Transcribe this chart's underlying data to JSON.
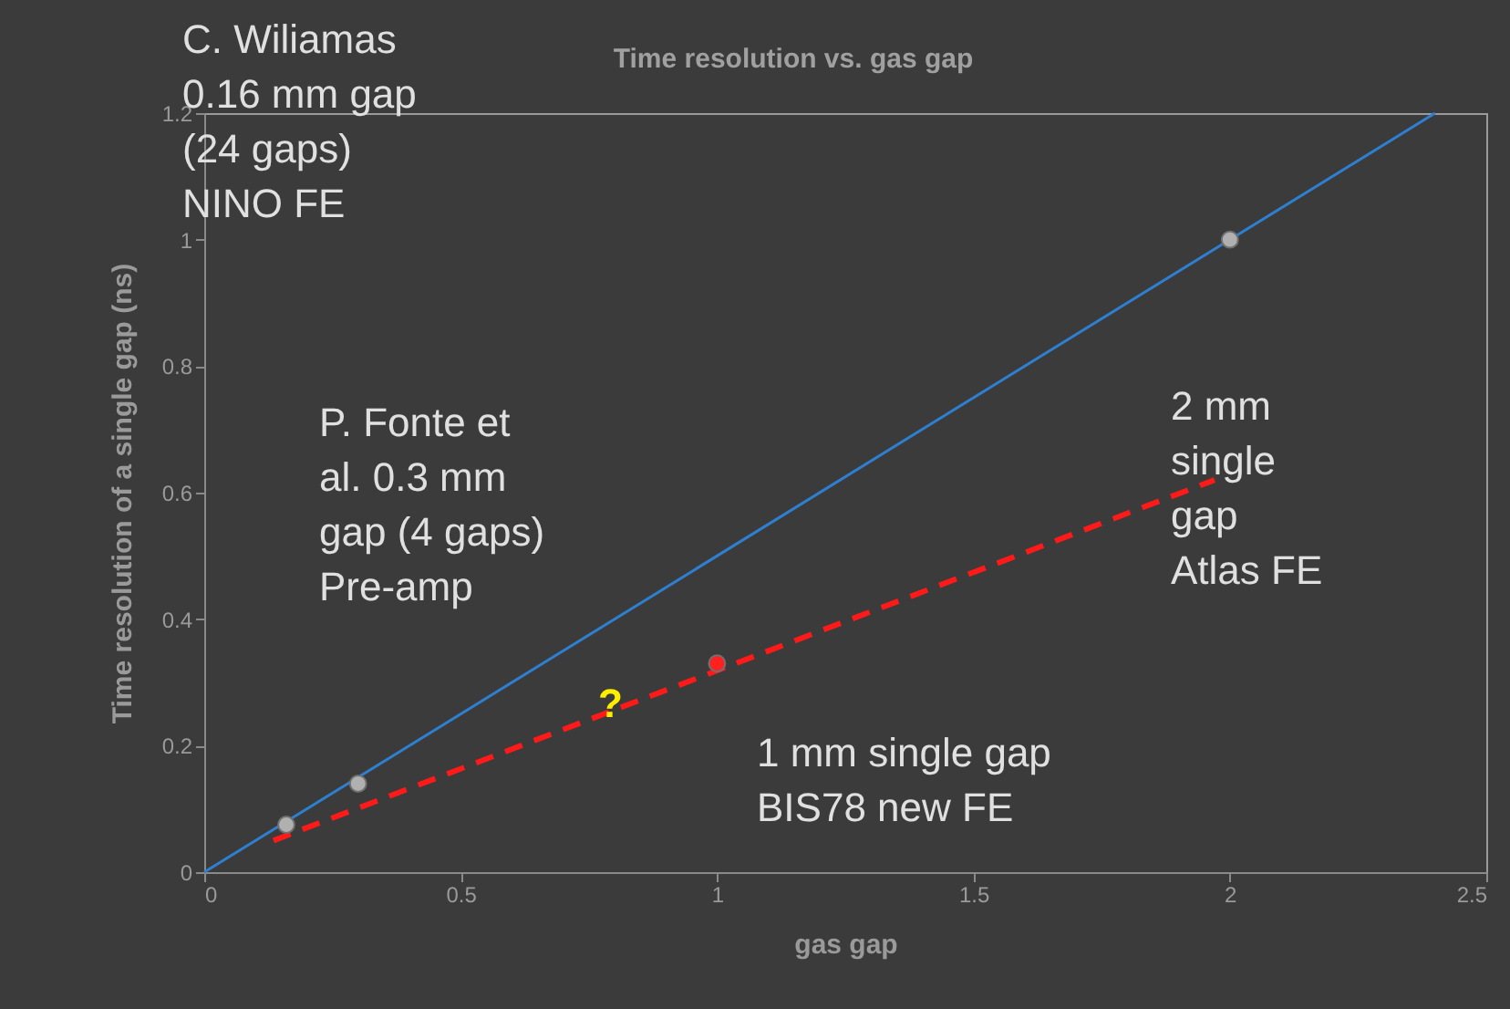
{
  "chart_data": {
    "type": "scatter",
    "title": "Time resolution vs. gas gap",
    "xlabel": "gas gap",
    "ylabel": "Time resolution of a single gap (ns)",
    "xlim": [
      0,
      2.5
    ],
    "xticks": [
      0,
      0.5,
      1,
      1.5,
      2,
      2.5
    ],
    "ylim": [
      0,
      1.2
    ],
    "yticks": [
      0,
      0.2,
      0.4,
      0.6,
      0.8,
      1,
      1.2
    ],
    "grid": false,
    "series": [
      {
        "type": "line",
        "color": "#2f7fd1",
        "x": [
          0,
          2.4
        ],
        "values": [
          0,
          1.2
        ],
        "line_style": "solid"
      },
      {
        "type": "line",
        "color": "#ff1a1a",
        "x": [
          0.135,
          1.97
        ],
        "values": [
          0.05,
          0.62
        ],
        "line_style": "dashed"
      },
      {
        "color": "#b0b0b0",
        "x": [
          0.16,
          0.3,
          2
        ],
        "values": [
          0.075,
          0.14,
          1.0
        ],
        "marker": "circle"
      },
      {
        "color": "#ff2020",
        "x": [
          1
        ],
        "values": [
          0.33
        ],
        "marker": "circle"
      }
    ],
    "annotations": [
      "C. Wiliamas 0.16 mm gap (24 gaps) NINO FE",
      "P. Fonte et al. 0.3 mm gap (4 gaps) Pre-amp",
      "2 mm single gap Atlas FE",
      "1 mm single gap BIS78 new FE",
      "?"
    ]
  }
}
